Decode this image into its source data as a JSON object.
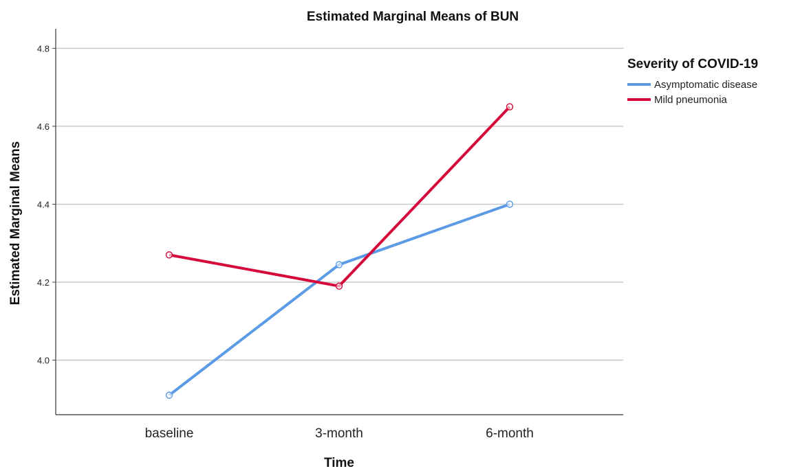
{
  "chart_data": {
    "type": "line",
    "title": "Estimated Marginal Means of BUN",
    "xlabel": "Time",
    "ylabel": "Estimated Marginal Means",
    "categories": [
      "baseline",
      "3-month",
      "6-month"
    ],
    "yticks": [
      "4.0",
      "4.2",
      "4.4",
      "4.6",
      "4.8"
    ],
    "ylim": [
      3.86,
      4.85
    ],
    "grid": true,
    "legend": {
      "title": "Severity of COVID-19",
      "placement": "top-right"
    },
    "series": [
      {
        "name": "Asymptomatic disease",
        "color": "#5b9be6",
        "values": [
          3.91,
          4.245,
          4.4
        ]
      },
      {
        "name": "Mild pneumonia",
        "color": "#d6093b",
        "values": [
          4.27,
          4.19,
          4.65
        ]
      }
    ]
  }
}
